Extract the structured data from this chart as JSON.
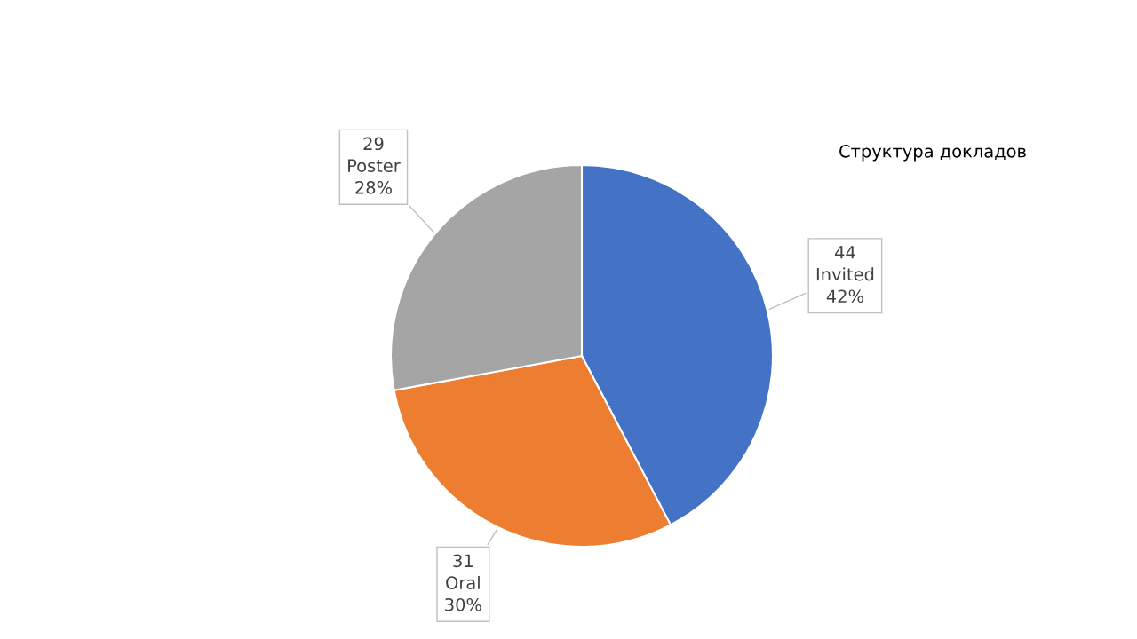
{
  "chart_data": {
    "type": "pie",
    "title": "Структура докладов",
    "categories": [
      "Invited",
      "Oral",
      "Poster"
    ],
    "values": [
      44,
      31,
      29
    ],
    "colors": [
      "#4472c4",
      "#ed7d31",
      "#a5a5a5"
    ],
    "data_labels": true,
    "annotations": [
      "42%",
      "30%",
      "28%"
    ]
  }
}
